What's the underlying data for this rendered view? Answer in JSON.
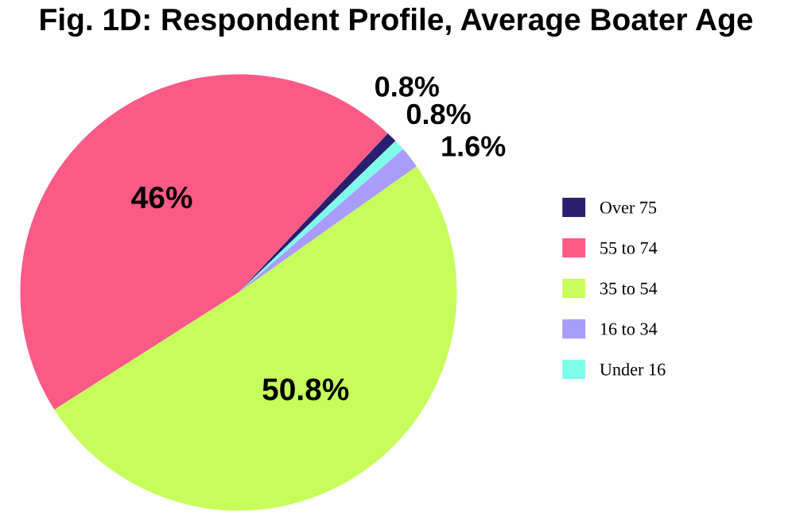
{
  "chart_data": {
    "type": "pie",
    "title": "Fig. 1D: Respondent Profile, Average Boater Age",
    "categories": [
      "Over 75",
      "55 to 74",
      "35 to 54",
      "16 to 34",
      "Under 16"
    ],
    "values": [
      0.8,
      46,
      50.8,
      1.6,
      0.8
    ],
    "value_labels": [
      "0.8%",
      "46%",
      "50.8%",
      "1.6%",
      "0.8%"
    ],
    "colors": [
      "#2a1f6e",
      "#fb5a87",
      "#c6fd5b",
      "#a99cfb",
      "#7ffcea"
    ],
    "legend": "right"
  }
}
